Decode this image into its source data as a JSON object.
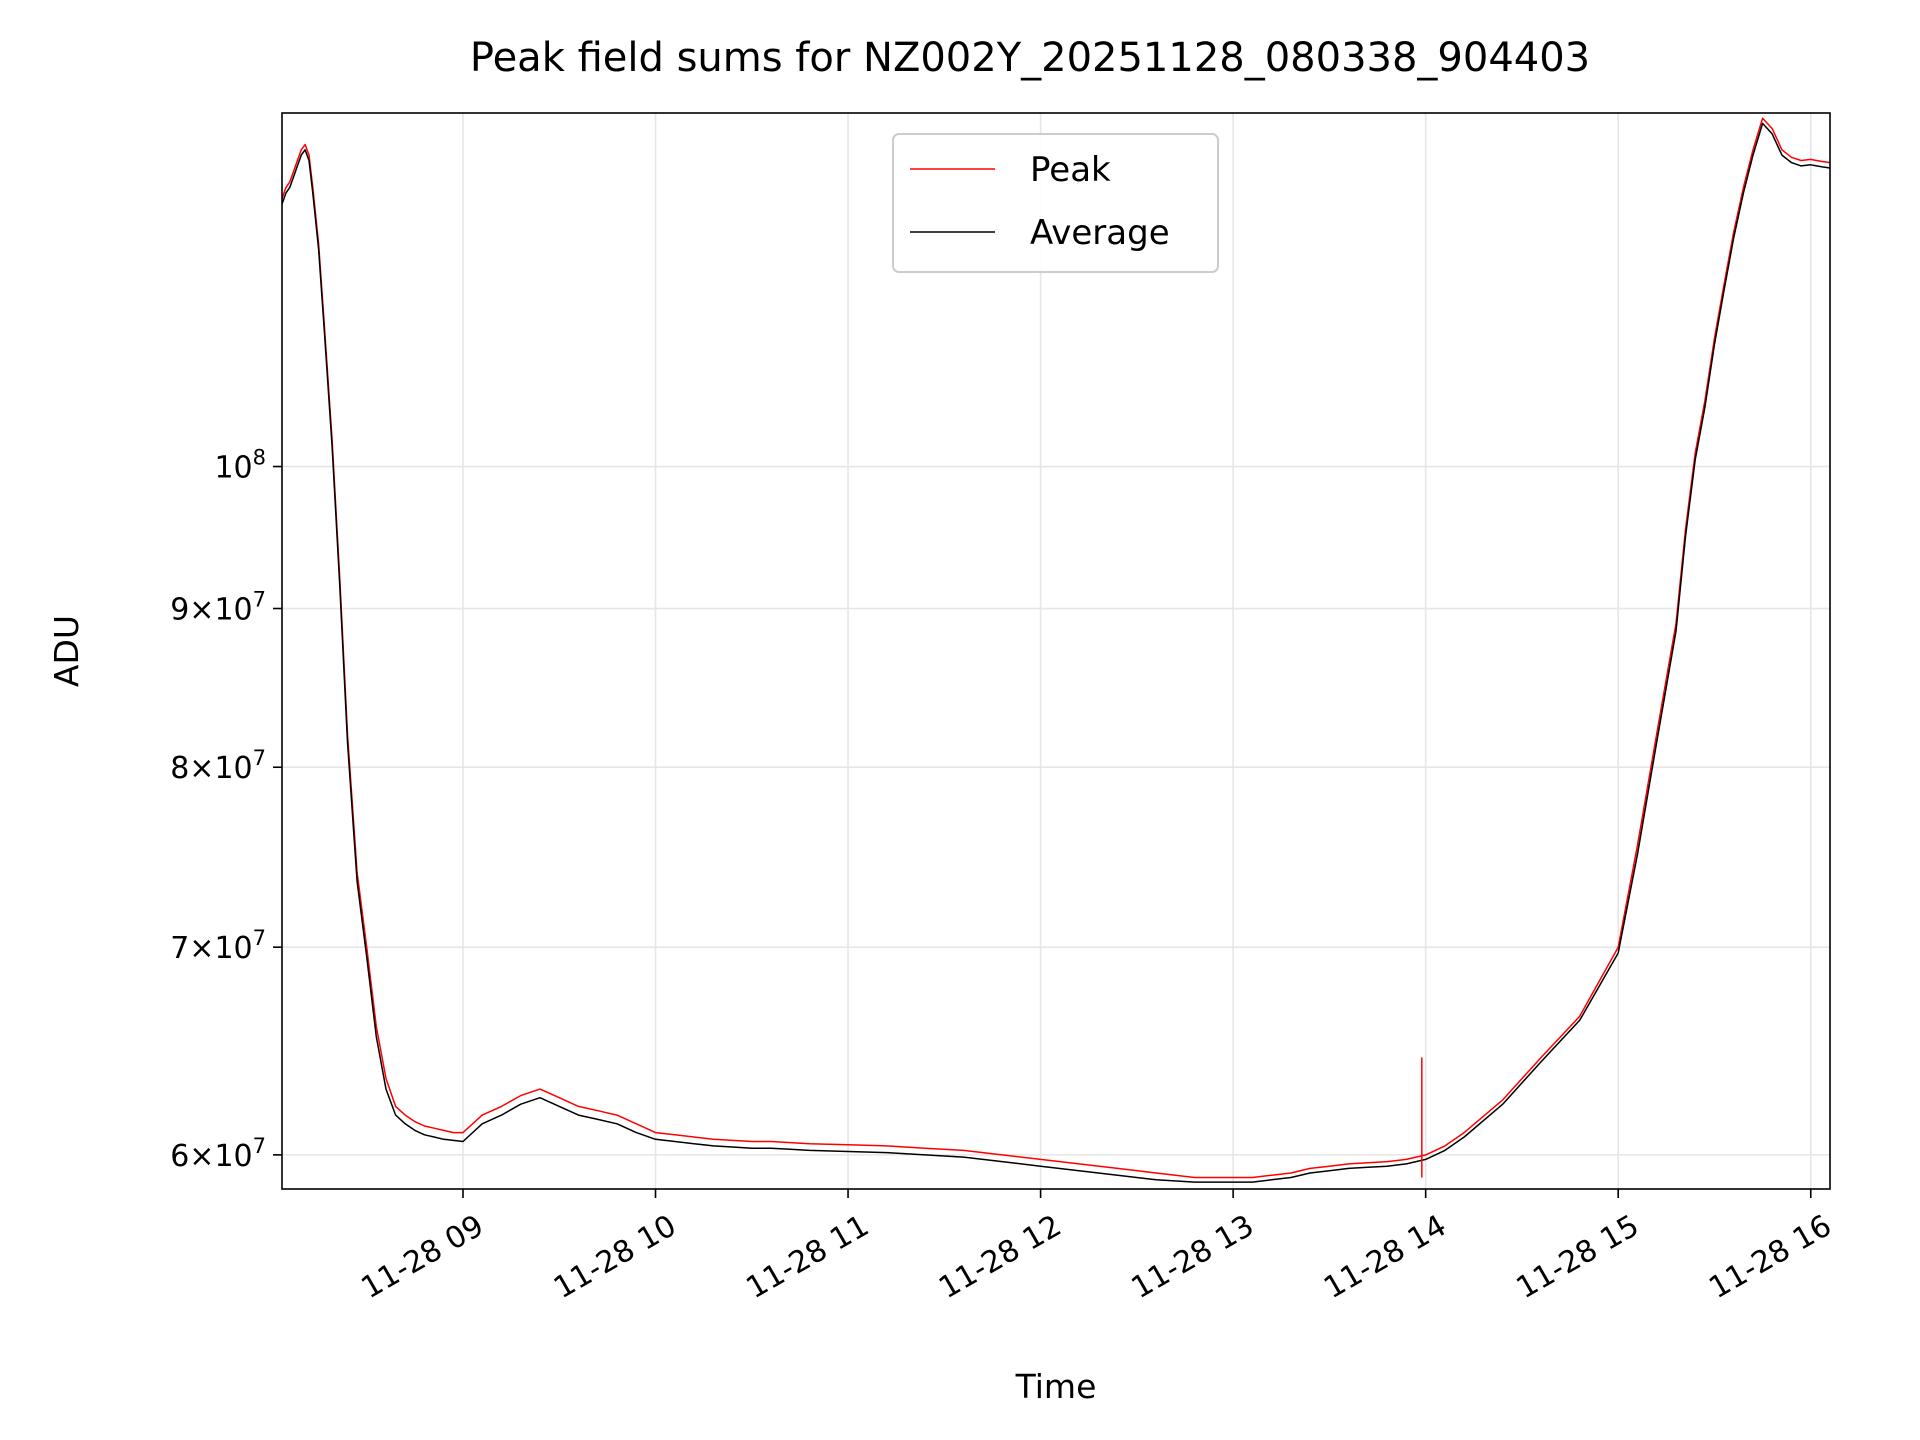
{
  "chart_data": {
    "type": "line",
    "title": "Peak field sums for NZ002Y_20251128_080338_904403",
    "xlabel": "Time",
    "ylabel": "ADU",
    "yscale": "log",
    "grid": true,
    "legend_position": "top-center",
    "xlim": [
      8.06,
      16.1
    ],
    "ylim": [
      58500000,
      130000000
    ],
    "x_ticks": [
      {
        "value": 9,
        "label": "11-28 09"
      },
      {
        "value": 10,
        "label": "11-28 10"
      },
      {
        "value": 11,
        "label": "11-28 11"
      },
      {
        "value": 12,
        "label": "11-28 12"
      },
      {
        "value": 13,
        "label": "11-28 13"
      },
      {
        "value": 14,
        "label": "11-28 14"
      },
      {
        "value": 15,
        "label": "11-28 15"
      },
      {
        "value": 16,
        "label": "11-28 16"
      }
    ],
    "y_ticks": [
      {
        "value": 60000000,
        "mantissa": "6",
        "base": "10",
        "exponent": "7"
      },
      {
        "value": 70000000,
        "mantissa": "7",
        "base": "10",
        "exponent": "7"
      },
      {
        "value": 80000000,
        "mantissa": "8",
        "base": "10",
        "exponent": "7"
      },
      {
        "value": 90000000,
        "mantissa": "9",
        "base": "10",
        "exponent": "7"
      },
      {
        "value": 100000000,
        "mantissa": "",
        "base": "10",
        "exponent": "8"
      }
    ],
    "x_unit": "hour of day (2025-11-28)",
    "series": [
      {
        "name": "Peak",
        "color": "#ff0000",
        "x": [
          8.06,
          8.08,
          8.1,
          8.12,
          8.14,
          8.16,
          8.18,
          8.2,
          8.22,
          8.25,
          8.28,
          8.32,
          8.36,
          8.4,
          8.45,
          8.5,
          8.55,
          8.6,
          8.65,
          8.7,
          8.75,
          8.8,
          8.85,
          8.9,
          8.95,
          9.0,
          9.1,
          9.2,
          9.3,
          9.4,
          9.5,
          9.6,
          9.7,
          9.8,
          9.9,
          10.0,
          10.1,
          10.2,
          10.3,
          10.4,
          10.5,
          10.6,
          10.7,
          10.8,
          11.0,
          11.2,
          11.4,
          11.6,
          11.8,
          12.0,
          12.2,
          12.4,
          12.6,
          12.8,
          13.0,
          13.1,
          13.2,
          13.3,
          13.4,
          13.5,
          13.6,
          13.7,
          13.8,
          13.9,
          14.0,
          14.1,
          14.2,
          14.4,
          14.6,
          14.8,
          15.0,
          15.1,
          15.2,
          15.3,
          15.35,
          15.4,
          15.45,
          15.5,
          15.55,
          15.6,
          15.65,
          15.7,
          15.75,
          15.8,
          15.85,
          15.9,
          15.95,
          16.0,
          16.03,
          16.06,
          16.1
        ],
        "values": [
          122000000,
          123000000,
          123500000,
          124500000,
          125500000,
          126500000,
          127000000,
          126000000,
          123000000,
          118000000,
          111000000,
          102000000,
          92000000,
          82000000,
          74000000,
          70000000,
          66000000,
          63500000,
          62200000,
          61800000,
          61500000,
          61300000,
          61200000,
          61100000,
          61000000,
          61000000,
          61800000,
          62200000,
          62700000,
          63000000,
          62600000,
          62200000,
          62000000,
          61800000,
          61400000,
          61000000,
          60900000,
          60800000,
          60700000,
          60650000,
          60600000,
          60600000,
          60550000,
          60500000,
          60450000,
          60400000,
          60300000,
          60200000,
          60000000,
          59800000,
          59600000,
          59400000,
          59200000,
          59000000,
          59000000,
          59000000,
          59100000,
          59200000,
          59400000,
          59500000,
          59600000,
          59650000,
          59700000,
          59800000,
          60000000,
          60400000,
          61000000,
          62500000,
          64500000,
          66500000,
          70000000,
          75500000,
          82000000,
          89000000,
          95500000,
          101000000,
          105000000,
          110000000,
          114500000,
          119000000,
          123000000,
          126500000,
          129500000,
          128500000,
          126500000,
          125800000,
          125500000,
          125600000,
          125500000,
          125400000,
          125300000
        ]
      },
      {
        "name": "Average",
        "color": "#000000",
        "x": [
          8.06,
          8.08,
          8.1,
          8.12,
          8.14,
          8.16,
          8.18,
          8.2,
          8.22,
          8.25,
          8.28,
          8.32,
          8.36,
          8.4,
          8.45,
          8.5,
          8.55,
          8.6,
          8.65,
          8.7,
          8.75,
          8.8,
          8.85,
          8.9,
          8.95,
          9.0,
          9.1,
          9.2,
          9.3,
          9.4,
          9.5,
          9.6,
          9.7,
          9.8,
          9.9,
          10.0,
          10.1,
          10.2,
          10.3,
          10.4,
          10.5,
          10.6,
          10.7,
          10.8,
          11.0,
          11.2,
          11.4,
          11.6,
          11.8,
          12.0,
          12.2,
          12.4,
          12.6,
          12.8,
          13.0,
          13.1,
          13.2,
          13.3,
          13.4,
          13.5,
          13.6,
          13.7,
          13.8,
          13.9,
          14.0,
          14.1,
          14.2,
          14.4,
          14.6,
          14.8,
          15.0,
          15.1,
          15.2,
          15.3,
          15.35,
          15.4,
          15.45,
          15.5,
          15.55,
          15.6,
          15.65,
          15.7,
          15.75,
          15.8,
          15.85,
          15.9,
          15.95,
          16.0,
          16.03,
          16.06,
          16.1
        ],
        "values": [
          121500000,
          122500000,
          123000000,
          124000000,
          125000000,
          126000000,
          126500000,
          125500000,
          122500000,
          117500000,
          110500000,
          101500000,
          91500000,
          81500000,
          73500000,
          69500000,
          65500000,
          63000000,
          61800000,
          61400000,
          61100000,
          60900000,
          60800000,
          60700000,
          60650000,
          60600000,
          61400000,
          61800000,
          62300000,
          62600000,
          62200000,
          61800000,
          61600000,
          61400000,
          61000000,
          60700000,
          60600000,
          60500000,
          60400000,
          60350000,
          60300000,
          60300000,
          60250000,
          60200000,
          60150000,
          60100000,
          60000000,
          59900000,
          59700000,
          59500000,
          59300000,
          59100000,
          58900000,
          58800000,
          58800000,
          58800000,
          58900000,
          59000000,
          59200000,
          59300000,
          59400000,
          59450000,
          59500000,
          59600000,
          59800000,
          60200000,
          60800000,
          62300000,
          64300000,
          66300000,
          69700000,
          75000000,
          81500000,
          88500000,
          95000000,
          100500000,
          104500000,
          109500000,
          114000000,
          118500000,
          122500000,
          126000000,
          129000000,
          128000000,
          126000000,
          125300000,
          125000000,
          125100000,
          125000000,
          124900000,
          124800000
        ]
      }
    ],
    "annotations": [
      {
        "series": "Peak",
        "x": 13.98,
        "value": 64500000,
        "text": "",
        "kind": "spike"
      }
    ]
  }
}
